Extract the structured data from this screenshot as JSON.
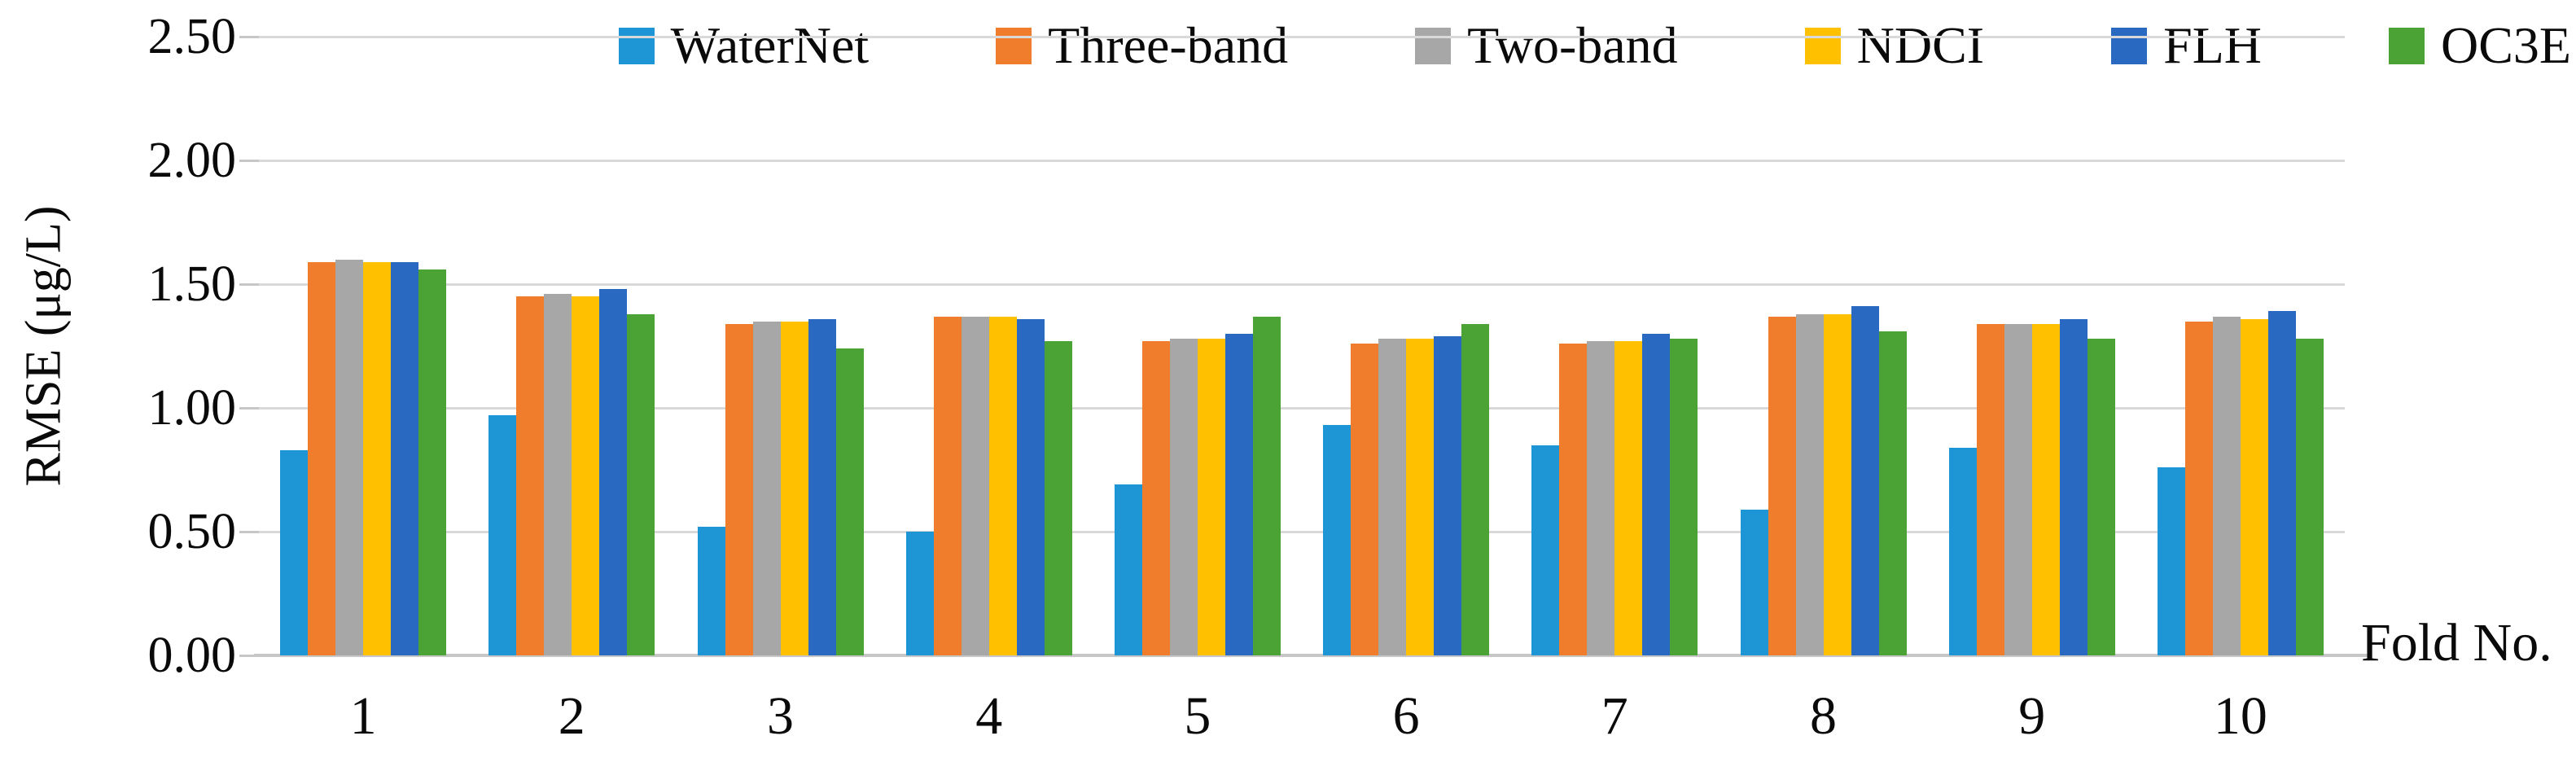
{
  "chart_data": {
    "type": "bar",
    "title": "",
    "ylabel": "RMSE (μg/L)",
    "xlabel": "Fold No.",
    "ylim": [
      0,
      2.5
    ],
    "y_ticks": [
      "0.00",
      "0.50",
      "1.00",
      "1.50",
      "2.00",
      "2.50"
    ],
    "grid": true,
    "legend_position": "top",
    "gridline_color": "#D9D9D9",
    "axis_line_color": "#C7C7C7",
    "categories": [
      "1",
      "2",
      "3",
      "4",
      "5",
      "6",
      "7",
      "8",
      "9",
      "10"
    ],
    "series": [
      {
        "name": "WaterNet",
        "color": "#1E96D6",
        "values": [
          0.83,
          0.97,
          0.52,
          0.5,
          0.69,
          0.93,
          0.85,
          0.59,
          0.84,
          0.76
        ]
      },
      {
        "name": "Three-band",
        "color": "#F07D2C",
        "values": [
          1.59,
          1.45,
          1.34,
          1.37,
          1.27,
          1.26,
          1.26,
          1.37,
          1.34,
          1.35
        ]
      },
      {
        "name": "Two-band",
        "color": "#A7A7A7",
        "values": [
          1.6,
          1.46,
          1.35,
          1.37,
          1.28,
          1.28,
          1.27,
          1.38,
          1.34,
          1.37
        ]
      },
      {
        "name": "NDCI",
        "color": "#FFC000",
        "values": [
          1.59,
          1.45,
          1.35,
          1.37,
          1.28,
          1.28,
          1.27,
          1.38,
          1.34,
          1.36
        ]
      },
      {
        "name": "FLH",
        "color": "#2A69C2",
        "values": [
          1.59,
          1.48,
          1.36,
          1.36,
          1.3,
          1.29,
          1.3,
          1.41,
          1.36,
          1.39
        ]
      },
      {
        "name": "OC3E",
        "color": "#4CA335",
        "values": [
          1.56,
          1.38,
          1.24,
          1.27,
          1.37,
          1.34,
          1.28,
          1.31,
          1.28,
          1.28
        ]
      }
    ]
  }
}
